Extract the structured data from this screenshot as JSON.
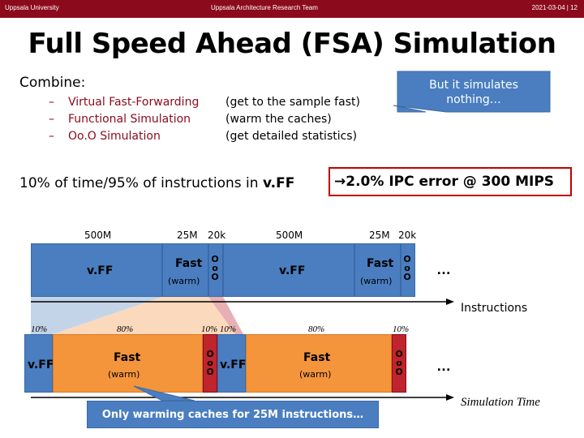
{
  "header": {
    "left": "Uppsala University",
    "center": "Uppsala Architecture Research Team",
    "right": "2021-03-04 | 12"
  },
  "title": "Full Speed Ahead (FSA) Simulation",
  "combine_label": "Combine:",
  "bullets": [
    {
      "dash": "–",
      "text": "Virtual Fast-Forwarding",
      "note": "(get to the sample fast)"
    },
    {
      "dash": "–",
      "text": "Functional Simulation",
      "note": "(warm the caches)"
    },
    {
      "dash": "–",
      "text": "Oo.O Simulation",
      "note": "(get detailed statistics)"
    }
  ],
  "callout_top": {
    "line1": "But it simulates",
    "line2": "nothing…"
  },
  "summary": {
    "prefix": "10% of time/95% of instructions in ",
    "bold": "v.FF"
  },
  "error": "2.0% IPC error @ 300 MIPS",
  "top_labels": {
    "a": "500M",
    "b": "25M",
    "c": "20k",
    "d": "500M",
    "e": "25M",
    "f": "20k"
  },
  "bars": {
    "vff": "v.FF",
    "fast": "Fast",
    "warm": "(warm)",
    "ooo": [
      "O",
      "o",
      "O"
    ],
    "dots": "…"
  },
  "axis_instructions": "Instructions",
  "axis_time": "Simulation Time",
  "pct_labels": {
    "p1": "10%",
    "p2": "80%",
    "p3": "10% 10%",
    "p4": "80%",
    "p5": "10%"
  },
  "callout_bottom": "Only warming caches for 25M instructions…",
  "colors": {
    "brand": "#8b0a1c",
    "blue": "#4a7ec0",
    "orange": "#f4943b",
    "red": "#c0242c"
  }
}
